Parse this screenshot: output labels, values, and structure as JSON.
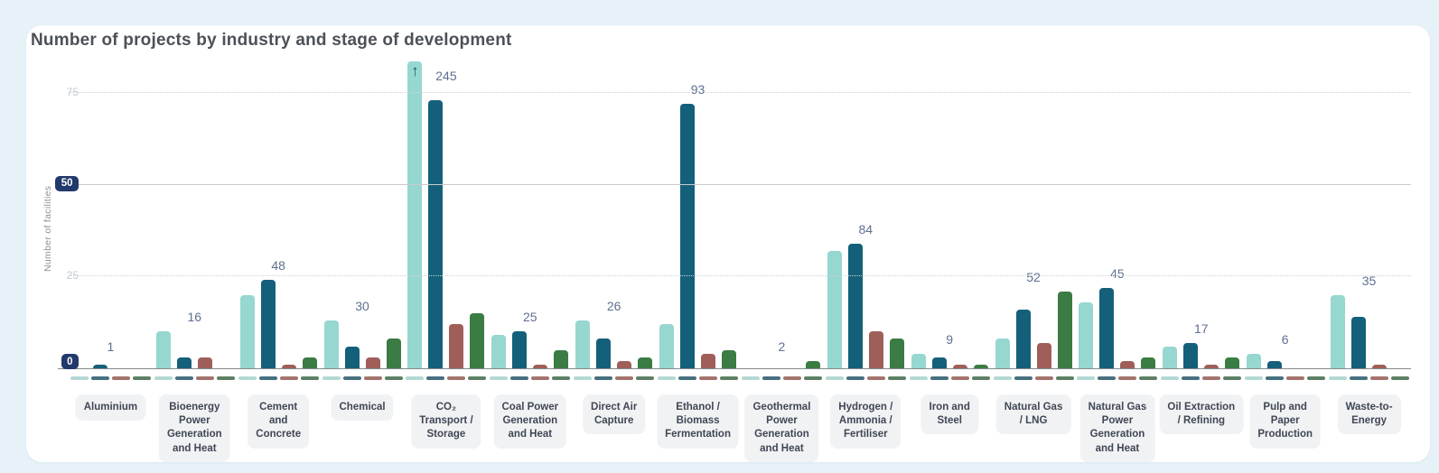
{
  "page": {
    "background_color": "#e6f2f8",
    "card_color": "#ffffff"
  },
  "header": {
    "title": "Number of projects by industry and stage of development"
  },
  "chart_data": {
    "type": "bar",
    "title": "Number of projects by industry and stage of development",
    "xlabel": "",
    "ylabel": "Number of facilities",
    "ylim": [
      0,
      83
    ],
    "grid": "horizontal",
    "legend_position": "none",
    "yticks": [
      {
        "value": 0,
        "label": "0",
        "badge": true
      },
      {
        "value": 25,
        "label": "25",
        "badge": false
      },
      {
        "value": 50,
        "label": "50",
        "badge": true
      },
      {
        "value": 75,
        "label": "75",
        "badge": false
      }
    ],
    "overflow_symbol": "↑",
    "categories": [
      {
        "label": "Aluminium",
        "display_label": "Aluminium",
        "total": 1
      },
      {
        "label": "Bioenergy Power Generation and Heat",
        "display_label": "Bioenergy\nPower\nGeneration\nand Heat",
        "total": 16
      },
      {
        "label": "Cement and Concrete",
        "display_label": "Cement\nand\nConcrete",
        "total": 48
      },
      {
        "label": "Chemical",
        "display_label": "Chemical",
        "total": 30
      },
      {
        "label": "CO₂ Transport / Storage",
        "display_label": "CO₂\nTransport /\nStorage",
        "total": 245
      },
      {
        "label": "Coal Power Generation and Heat",
        "display_label": "Coal Power\nGeneration\nand Heat",
        "total": 25
      },
      {
        "label": "Direct Air Capture",
        "display_label": "Direct Air\nCapture",
        "total": 26
      },
      {
        "label": "Ethanol / Biomass Fermentation",
        "display_label": "Ethanol /\nBiomass\nFermentation",
        "total": 93
      },
      {
        "label": "Geothermal Power Generation and Heat",
        "display_label": "Geothermal\nPower\nGeneration\nand Heat",
        "total": 2
      },
      {
        "label": "Hydrogen / Ammonia / Fertiliser",
        "display_label": "Hydrogen /\nAmmonia /\nFertiliser",
        "total": 84
      },
      {
        "label": "Iron and Steel",
        "display_label": "Iron and\nSteel",
        "total": 9
      },
      {
        "label": "Natural Gas / LNG",
        "display_label": "Natural Gas\n/ LNG",
        "total": 52
      },
      {
        "label": "Natural Gas Power Generation and Heat",
        "display_label": "Natural Gas\nPower\nGeneration\nand Heat",
        "total": 45
      },
      {
        "label": "Oil Extraction / Refining",
        "display_label": "Oil Extraction\n/ Refining",
        "total": 17
      },
      {
        "label": "Pulp and Paper Production",
        "display_label": "Pulp and\nPaper\nProduction",
        "total": 6
      },
      {
        "label": "Waste-to-Energy",
        "display_label": "Waste-to-\nEnergy",
        "total": 35
      }
    ],
    "series": [
      {
        "name": "series-1-light-teal",
        "color": "#96d7d0",
        "marker_color": "#b4d8d3",
        "values": [
          0,
          10,
          20,
          13,
          145,
          9,
          13,
          12,
          0,
          32,
          4,
          8,
          18,
          6,
          4,
          20
        ]
      },
      {
        "name": "series-2-dark-teal",
        "color": "#14607a",
        "marker_color": "#477080",
        "values": [
          1,
          3,
          24,
          6,
          73,
          10,
          8,
          72,
          0,
          34,
          3,
          16,
          22,
          7,
          2,
          14
        ]
      },
      {
        "name": "series-3-brown",
        "color": "#a05e59",
        "marker_color": "#a3746d",
        "values": [
          0,
          3,
          1,
          3,
          12,
          1,
          2,
          4,
          0,
          10,
          1,
          7,
          2,
          1,
          0,
          1
        ]
      },
      {
        "name": "series-4-green",
        "color": "#3a7c44",
        "marker_color": "#5d8064",
        "values": [
          0,
          0,
          3,
          8,
          15,
          5,
          3,
          5,
          2,
          8,
          1,
          21,
          3,
          3,
          0,
          0
        ]
      }
    ],
    "group_totals": [
      1,
      16,
      48,
      30,
      245,
      25,
      26,
      93,
      2,
      84,
      9,
      52,
      45,
      17,
      6,
      35
    ]
  },
  "style": {
    "tick_badge_color": "#21396b",
    "tick_text_color": "#c3ccd4",
    "annotation_color": "#5f7090",
    "category_pill_bg": "#f1f2f4",
    "category_pill_text": "#3f4754"
  }
}
